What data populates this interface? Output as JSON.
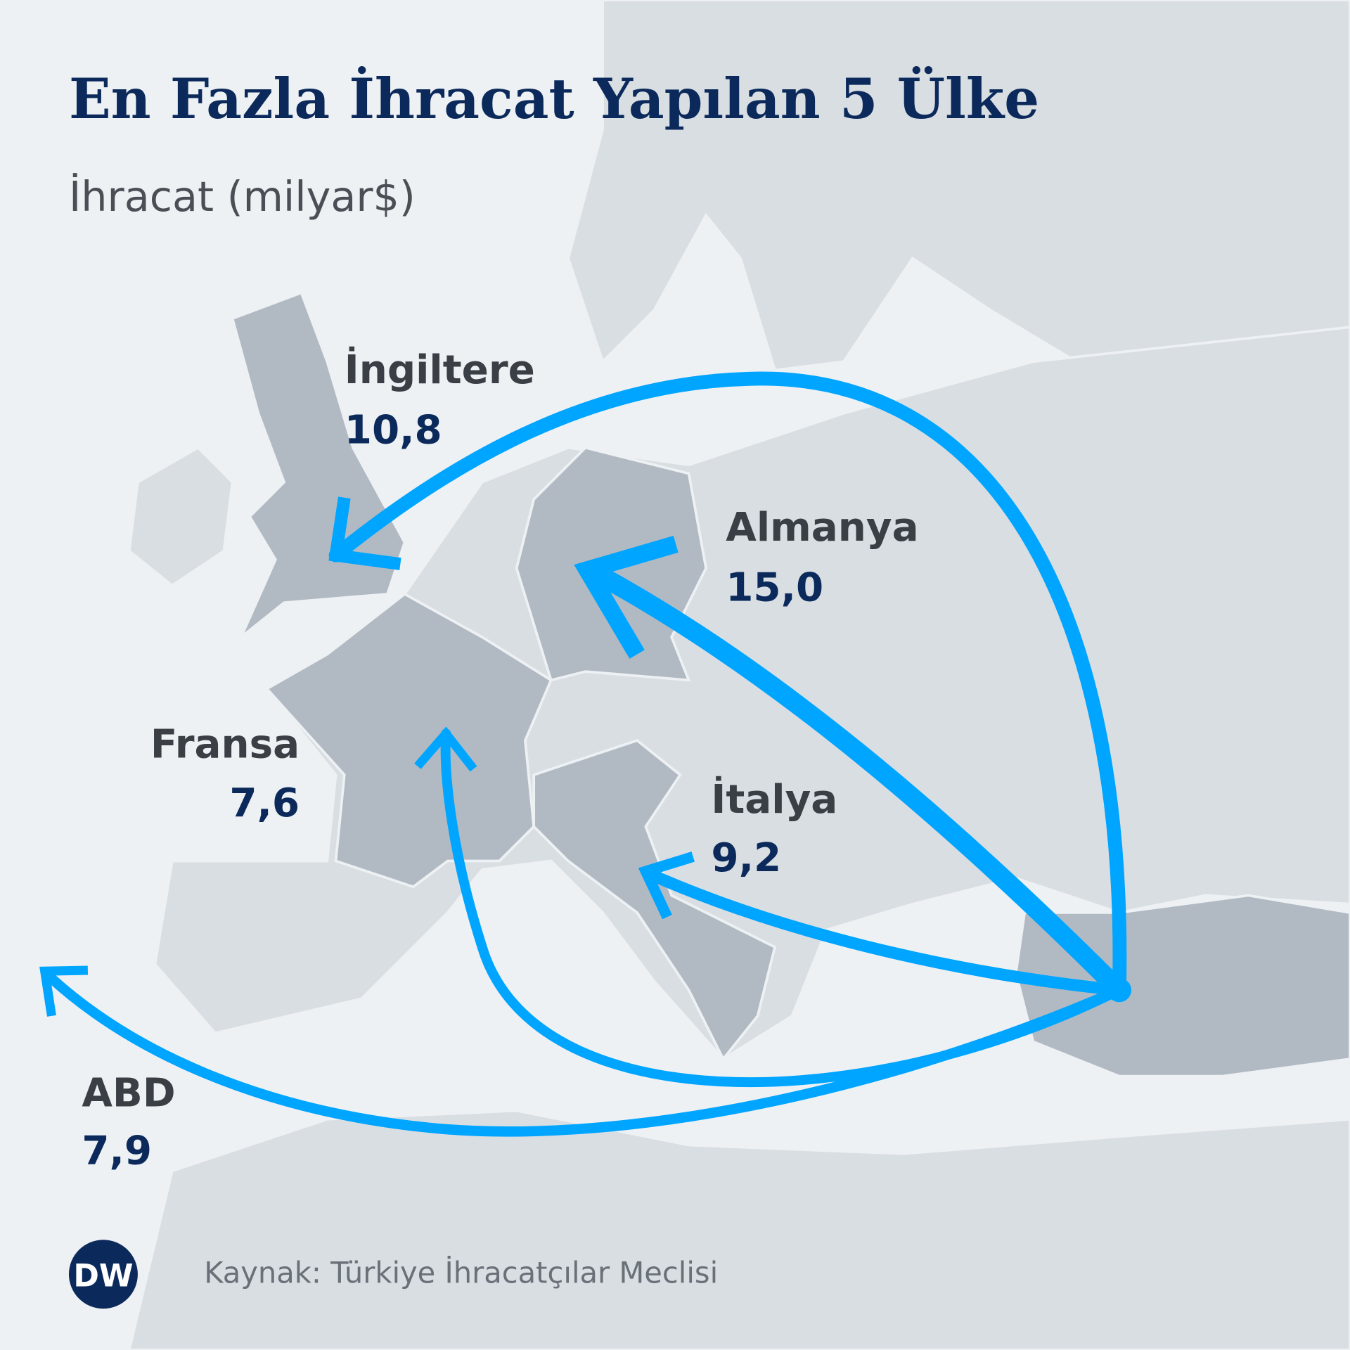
{
  "title": "En Fazla İhracat Yapılan 5 Ülke",
  "subtitle": "İhracat (milyar$)",
  "flows": [
    {
      "country": "İngiltere",
      "value": 10.8,
      "label": "10,8"
    },
    {
      "country": "Almanya",
      "value": 15.0,
      "label": "15,0"
    },
    {
      "country": "Fransa",
      "value": 7.6,
      "label": "7,6"
    },
    {
      "country": "İtalya",
      "value": 9.2,
      "label": "9,2"
    },
    {
      "country": "ABD",
      "value": 7.9,
      "label": "7,9"
    }
  ],
  "source": "Kaynak: Türkiye İhracatçılar Meclisi",
  "logo": "DW"
}
